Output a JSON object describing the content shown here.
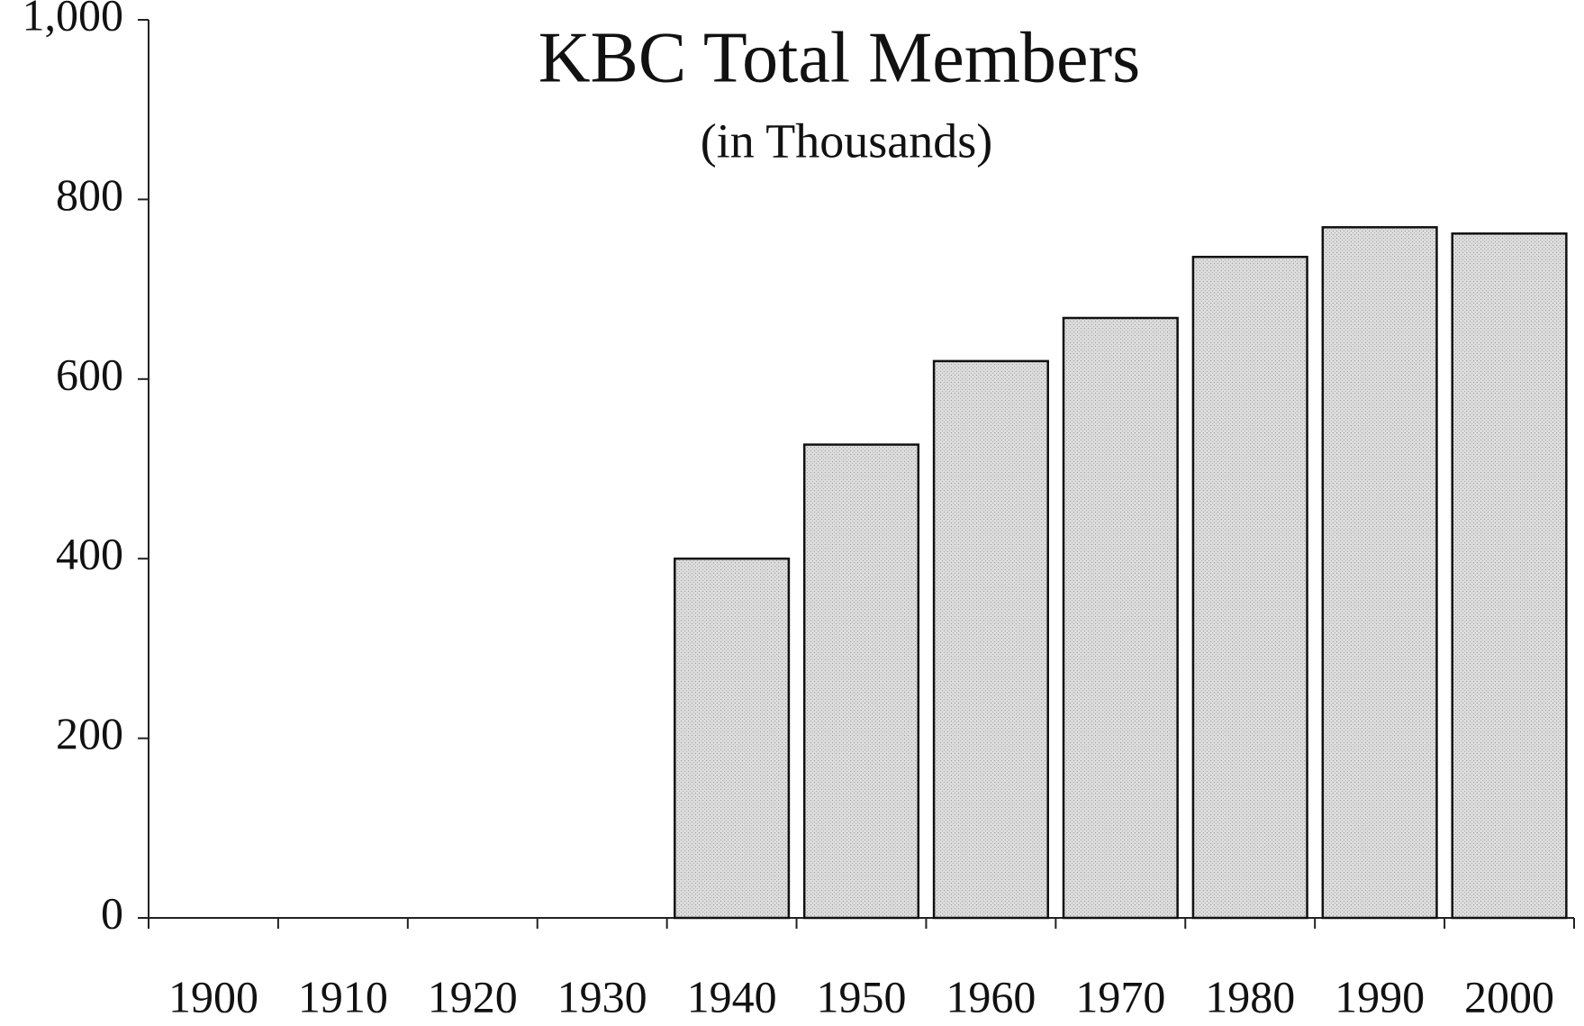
{
  "chart_data": {
    "type": "bar",
    "title": "KBC Total Members",
    "subtitle": "(in Thousands)",
    "categories": [
      "1900",
      "1910",
      "1920",
      "1930",
      "1940",
      "1950",
      "1960",
      "1970",
      "1980",
      "1990",
      "2000"
    ],
    "values": [
      0,
      0,
      0,
      0,
      400,
      527,
      620,
      668,
      736,
      769,
      762
    ],
    "color": "#d9d9d9",
    "ylim": [
      0,
      1000
    ],
    "yticks": [
      0,
      200,
      400,
      600,
      800,
      {
        "value": 1000,
        "label": "1,000"
      }
    ],
    "grid": false
  }
}
